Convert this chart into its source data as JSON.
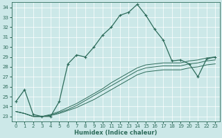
{
  "xlabel": "Humidex (Indice chaleur)",
  "bg_color": "#cce8e8",
  "line_color": "#2d6b5a",
  "xlim": [
    -0.5,
    23.5
  ],
  "ylim": [
    22.5,
    34.5
  ],
  "xticks": [
    0,
    1,
    2,
    3,
    4,
    5,
    6,
    7,
    8,
    9,
    10,
    11,
    12,
    13,
    14,
    15,
    16,
    17,
    18,
    19,
    20,
    21,
    22,
    23
  ],
  "yticks": [
    23,
    24,
    25,
    26,
    27,
    28,
    29,
    30,
    31,
    32,
    33,
    34
  ],
  "main_series": [
    24.5,
    25.7,
    23.2,
    23.0,
    23.0,
    24.5,
    28.3,
    29.2,
    29.0,
    30.0,
    31.2,
    32.0,
    33.2,
    33.5,
    34.3,
    33.2,
    31.8,
    30.7,
    28.6,
    28.7,
    28.3,
    27.0,
    28.8,
    29.0
  ],
  "straight_series": [
    [
      23.5,
      23.3,
      23.0,
      23.0,
      23.1,
      23.3,
      23.6,
      23.9,
      24.3,
      24.7,
      25.2,
      25.7,
      26.2,
      26.7,
      27.2,
      27.5,
      27.6,
      27.7,
      27.7,
      27.7,
      27.9,
      28.0,
      28.2,
      28.3
    ],
    [
      23.5,
      23.3,
      23.0,
      23.0,
      23.1,
      23.4,
      23.7,
      24.1,
      24.6,
      25.1,
      25.6,
      26.1,
      26.6,
      27.1,
      27.6,
      27.9,
      28.0,
      28.1,
      28.1,
      28.1,
      28.3,
      28.4,
      28.6,
      28.7
    ],
    [
      23.5,
      23.3,
      23.0,
      23.0,
      23.2,
      23.5,
      23.9,
      24.3,
      24.8,
      25.3,
      25.8,
      26.4,
      26.9,
      27.4,
      27.9,
      28.2,
      28.3,
      28.4,
      28.4,
      28.4,
      28.6,
      28.7,
      28.9,
      29.0
    ]
  ],
  "xlabel_fontsize": 6,
  "tick_fontsize": 5,
  "linewidth_main": 0.9,
  "linewidth_straight": 0.7,
  "marker_size": 3.0
}
